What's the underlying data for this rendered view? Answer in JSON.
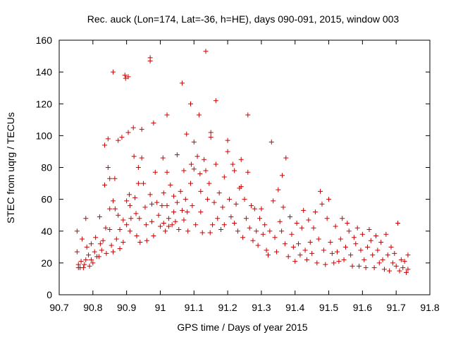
{
  "chart_data": {
    "type": "scatter",
    "title": "Rec. auck (Lon=174, Lat=-36, h=HE), days 090-091, 2015, window 003",
    "xlabel": "GPS time / Days of year 2015",
    "ylabel": "STEC from uqrg / TECUs",
    "xlim": [
      90.7,
      91.8
    ],
    "ylim": [
      0,
      160
    ],
    "x_ticks": [
      90.7,
      90.8,
      90.9,
      91.0,
      91.1,
      91.2,
      91.3,
      91.4,
      91.5,
      91.6,
      91.7,
      91.8
    ],
    "x_tick_labels": [
      "90.7",
      "90.8",
      "90.9",
      "91",
      "91.1",
      "91.2",
      "91.3",
      "91.4",
      "91.5",
      "91.6",
      "91.7",
      "91.8"
    ],
    "y_ticks": [
      0,
      20,
      40,
      60,
      80,
      100,
      120,
      140,
      160
    ],
    "y_tick_labels": [
      "0",
      "20",
      "40",
      "60",
      "80",
      "100",
      "120",
      "140",
      "160"
    ],
    "grid": false,
    "legend": "none",
    "marker": "+",
    "color": "#cc0000",
    "points": [
      [
        90.753,
        40
      ],
      [
        90.753,
        27
      ],
      [
        90.757,
        17
      ],
      [
        90.757,
        19
      ],
      [
        90.762,
        17
      ],
      [
        90.765,
        21
      ],
      [
        90.768,
        35
      ],
      [
        90.772,
        17
      ],
      [
        90.775,
        19
      ],
      [
        90.779,
        48
      ],
      [
        90.779,
        22
      ],
      [
        90.782,
        30
      ],
      [
        90.787,
        25
      ],
      [
        90.79,
        18
      ],
      [
        90.795,
        22
      ],
      [
        90.795,
        32
      ],
      [
        90.8,
        20
      ],
      [
        90.805,
        27
      ],
      [
        90.808,
        36
      ],
      [
        90.812,
        24
      ],
      [
        90.818,
        24
      ],
      [
        90.82,
        49
      ],
      [
        90.822,
        32
      ],
      [
        90.826,
        28
      ],
      [
        90.83,
        34
      ],
      [
        90.835,
        94
      ],
      [
        90.835,
        69
      ],
      [
        90.838,
        42
      ],
      [
        90.84,
        26
      ],
      [
        90.845,
        98
      ],
      [
        90.845,
        80
      ],
      [
        90.85,
        73
      ],
      [
        90.85,
        54
      ],
      [
        90.85,
        41
      ],
      [
        90.855,
        31
      ],
      [
        90.86,
        140
      ],
      [
        90.86,
        59
      ],
      [
        90.86,
        27
      ],
      [
        90.865,
        73
      ],
      [
        90.866,
        54
      ],
      [
        90.87,
        35
      ],
      [
        90.875,
        97
      ],
      [
        90.875,
        50
      ],
      [
        90.88,
        29
      ],
      [
        90.88,
        41
      ],
      [
        90.886,
        99
      ],
      [
        90.89,
        47
      ],
      [
        90.89,
        33
      ],
      [
        90.895,
        138
      ],
      [
        90.897,
        136
      ],
      [
        90.9,
        59
      ],
      [
        90.9,
        44
      ],
      [
        90.905,
        137
      ],
      [
        90.905,
        102
      ],
      [
        90.908,
        63
      ],
      [
        90.91,
        56
      ],
      [
        90.91,
        40
      ],
      [
        90.913,
        48
      ],
      [
        90.92,
        105
      ],
      [
        90.922,
        87
      ],
      [
        90.925,
        61
      ],
      [
        90.928,
        51
      ],
      [
        90.93,
        37
      ],
      [
        90.935,
        70
      ],
      [
        90.935,
        80
      ],
      [
        90.938,
        48
      ],
      [
        90.94,
        33
      ],
      [
        90.945,
        104
      ],
      [
        90.945,
        86
      ],
      [
        90.95,
        70
      ],
      [
        90.955,
        55
      ],
      [
        90.958,
        44
      ],
      [
        90.96,
        34
      ],
      [
        90.97,
        149
      ],
      [
        90.97,
        147
      ],
      [
        90.97,
        63
      ],
      [
        90.975,
        57
      ],
      [
        90.975,
        46
      ],
      [
        90.98,
        37
      ],
      [
        90.98,
        108
      ],
      [
        90.985,
        77
      ],
      [
        90.99,
        58
      ],
      [
        90.995,
        50
      ],
      [
        91.0,
        43
      ],
      [
        91.005,
        56
      ],
      [
        91.008,
        86
      ],
      [
        91.01,
        64
      ],
      [
        91.01,
        45
      ],
      [
        91.015,
        40
      ],
      [
        91.02,
        113
      ],
      [
        91.02,
        77
      ],
      [
        91.02,
        56
      ],
      [
        91.025,
        48
      ],
      [
        91.025,
        43
      ],
      [
        91.03,
        69
      ],
      [
        91.035,
        44
      ],
      [
        91.04,
        62
      ],
      [
        91.04,
        52
      ],
      [
        91.045,
        46
      ],
      [
        91.05,
        88
      ],
      [
        91.05,
        58
      ],
      [
        91.055,
        41
      ],
      [
        91.06,
        65
      ],
      [
        91.065,
        133
      ],
      [
        91.065,
        53
      ],
      [
        91.07,
        78
      ],
      [
        91.07,
        47
      ],
      [
        91.075,
        60
      ],
      [
        91.078,
        101
      ],
      [
        91.08,
        52
      ],
      [
        91.082,
        40
      ],
      [
        91.09,
        120
      ],
      [
        91.09,
        70
      ],
      [
        91.092,
        82
      ],
      [
        91.095,
        56
      ],
      [
        91.1,
        96
      ],
      [
        91.1,
        79
      ],
      [
        91.105,
        44
      ],
      [
        91.11,
        87
      ],
      [
        91.115,
        113
      ],
      [
        91.118,
        76
      ],
      [
        91.12,
        65
      ],
      [
        91.12,
        52
      ],
      [
        91.125,
        39
      ],
      [
        91.13,
        85
      ],
      [
        91.135,
        153
      ],
      [
        91.135,
        78
      ],
      [
        91.14,
        60
      ],
      [
        91.145,
        70
      ],
      [
        91.148,
        39
      ],
      [
        91.15,
        102
      ],
      [
        91.15,
        99
      ],
      [
        91.155,
        44
      ],
      [
        91.16,
        58
      ],
      [
        91.165,
        122
      ],
      [
        91.165,
        82
      ],
      [
        91.17,
        48
      ],
      [
        91.175,
        64
      ],
      [
        91.18,
        41
      ],
      [
        91.185,
        55
      ],
      [
        91.19,
        74
      ],
      [
        91.19,
        44
      ],
      [
        91.2,
        97
      ],
      [
        91.2,
        90
      ],
      [
        91.205,
        60
      ],
      [
        91.21,
        49
      ],
      [
        91.215,
        82
      ],
      [
        91.22,
        78
      ],
      [
        91.22,
        45
      ],
      [
        91.225,
        57
      ],
      [
        91.23,
        40
      ],
      [
        91.235,
        67
      ],
      [
        91.24,
        85
      ],
      [
        91.24,
        68
      ],
      [
        91.245,
        36
      ],
      [
        91.25,
        60
      ],
      [
        91.255,
        48
      ],
      [
        91.26,
        113
      ],
      [
        91.26,
        77
      ],
      [
        91.265,
        42
      ],
      [
        91.27,
        56
      ],
      [
        91.275,
        34
      ],
      [
        91.28,
        54
      ],
      [
        91.285,
        40
      ],
      [
        91.29,
        31
      ],
      [
        91.295,
        48
      ],
      [
        91.3,
        54
      ],
      [
        91.305,
        38
      ],
      [
        91.31,
        44
      ],
      [
        91.315,
        28
      ],
      [
        91.32,
        25
      ],
      [
        91.325,
        40
      ],
      [
        91.33,
        96
      ],
      [
        91.335,
        59
      ],
      [
        91.34,
        36
      ],
      [
        91.345,
        27
      ],
      [
        91.35,
        66
      ],
      [
        91.355,
        46
      ],
      [
        91.36,
        40
      ],
      [
        91.362,
        75
      ],
      [
        91.365,
        55
      ],
      [
        91.37,
        32
      ],
      [
        91.373,
        86
      ],
      [
        91.38,
        24
      ],
      [
        91.385,
        49
      ],
      [
        91.39,
        38
      ],
      [
        91.395,
        30
      ],
      [
        91.4,
        21
      ],
      [
        91.405,
        45
      ],
      [
        91.41,
        32
      ],
      [
        91.415,
        25
      ],
      [
        91.42,
        42
      ],
      [
        91.425,
        53
      ],
      [
        91.43,
        28
      ],
      [
        91.435,
        22
      ],
      [
        91.44,
        47
      ],
      [
        91.445,
        33
      ],
      [
        91.45,
        26
      ],
      [
        91.455,
        42
      ],
      [
        91.46,
        52
      ],
      [
        91.465,
        20
      ],
      [
        91.47,
        35
      ],
      [
        91.475,
        65
      ],
      [
        91.48,
        57
      ],
      [
        91.485,
        28
      ],
      [
        91.49,
        19
      ],
      [
        91.495,
        48
      ],
      [
        91.5,
        60
      ],
      [
        91.505,
        33
      ],
      [
        91.51,
        26
      ],
      [
        91.515,
        20
      ],
      [
        91.52,
        43
      ],
      [
        91.525,
        27
      ],
      [
        91.53,
        21
      ],
      [
        91.535,
        35
      ],
      [
        91.54,
        48
      ],
      [
        91.545,
        22
      ],
      [
        91.55,
        30
      ],
      [
        91.555,
        45
      ],
      [
        91.56,
        40
      ],
      [
        91.565,
        25
      ],
      [
        91.57,
        18
      ],
      [
        91.575,
        36
      ],
      [
        91.58,
        32
      ],
      [
        91.585,
        42
      ],
      [
        91.59,
        18
      ],
      [
        91.595,
        28
      ],
      [
        91.6,
        38
      ],
      [
        91.605,
        22
      ],
      [
        91.61,
        17
      ],
      [
        91.615,
        30
      ],
      [
        91.62,
        41
      ],
      [
        91.625,
        34
      ],
      [
        91.63,
        25
      ],
      [
        91.635,
        17
      ],
      [
        91.64,
        37
      ],
      [
        91.645,
        28
      ],
      [
        91.65,
        20
      ],
      [
        91.655,
        33
      ],
      [
        91.66,
        22
      ],
      [
        91.665,
        16
      ],
      [
        91.67,
        38
      ],
      [
        91.675,
        25
      ],
      [
        91.68,
        15
      ],
      [
        91.685,
        30
      ],
      [
        91.69,
        20
      ],
      [
        91.695,
        26
      ],
      [
        91.7,
        18
      ],
      [
        91.705,
        45
      ],
      [
        91.71,
        15
      ],
      [
        91.715,
        22
      ],
      [
        91.72,
        17
      ],
      [
        91.725,
        21
      ],
      [
        91.73,
        14
      ],
      [
        91.735,
        25
      ],
      [
        91.735,
        16
      ]
    ]
  }
}
